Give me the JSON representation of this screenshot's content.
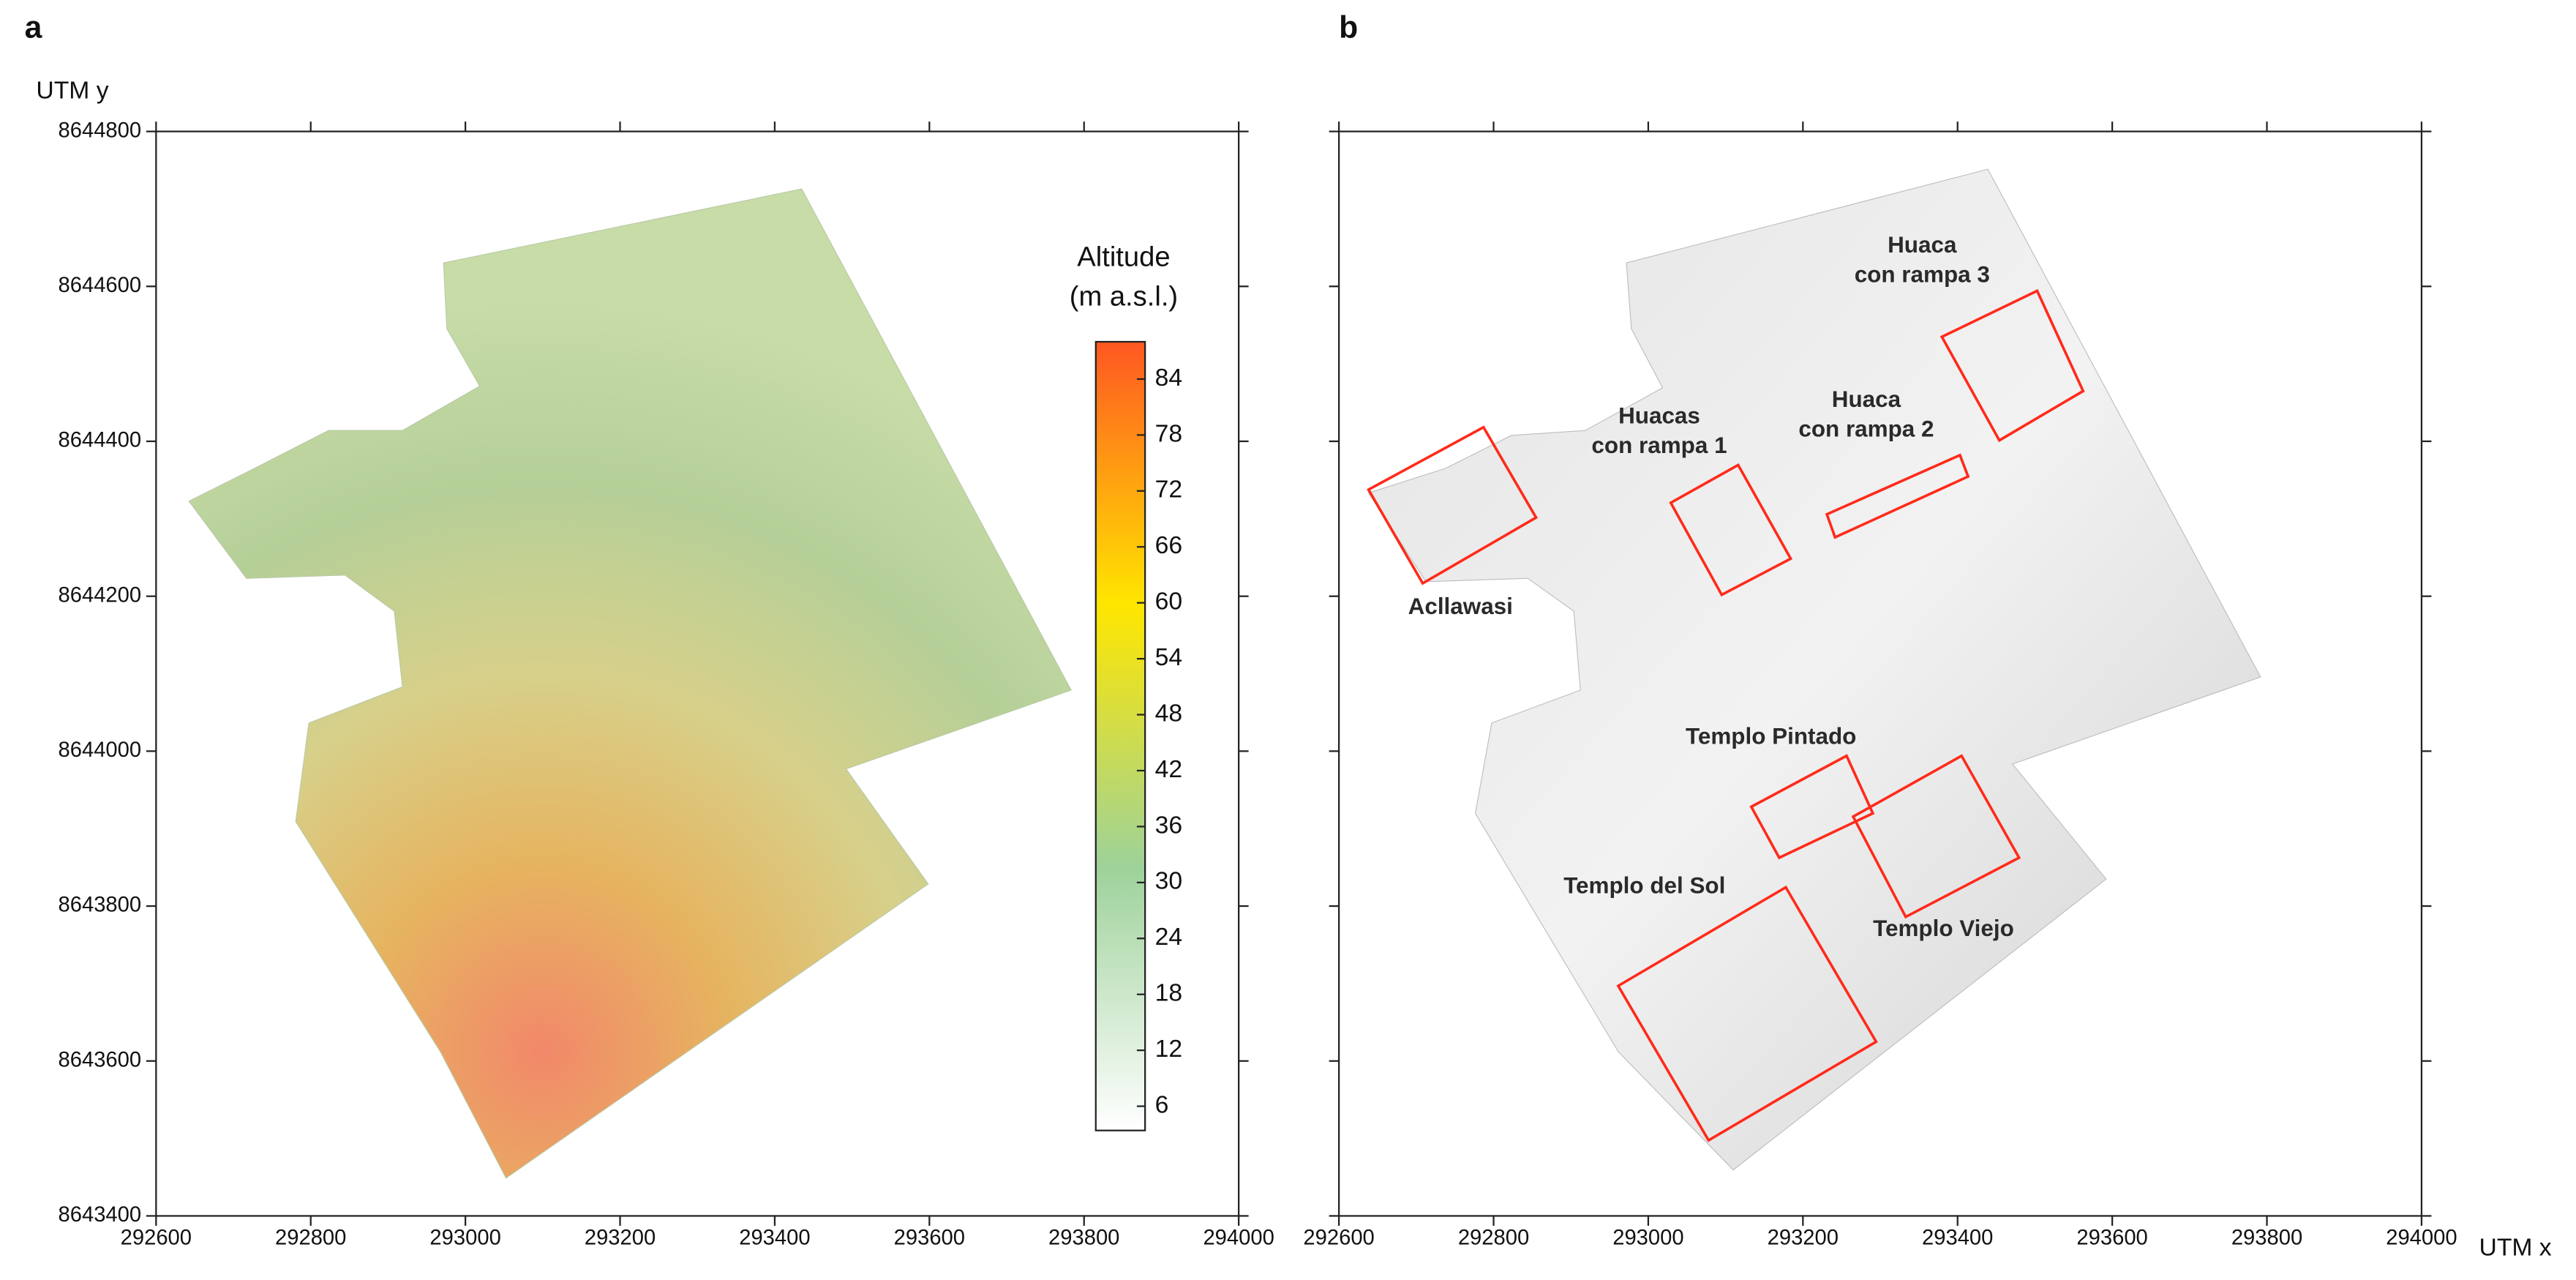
{
  "chart_data": [
    {
      "type": "map",
      "panel": "a",
      "xlim": [
        292600,
        294000
      ],
      "ylim": [
        8643400,
        8644800
      ],
      "xticks": [
        292600,
        292800,
        293000,
        293200,
        293400,
        293600,
        293800,
        294000
      ],
      "yticks": [
        8643400,
        8643600,
        8643800,
        8644000,
        8644200,
        8644400,
        8644600,
        8644800
      ],
      "ylabel": "UTM y",
      "colorbar": {
        "title": [
          "Altitude",
          "(m a.s.l.)"
        ],
        "clim": [
          3.4,
          88
        ],
        "colors": [
          "#ffffff",
          "#9ed29a",
          "#ffe600",
          "#ff5722"
        ],
        "ticks": [
          6,
          12,
          18,
          24,
          30,
          36,
          42,
          48,
          54,
          60,
          66,
          72,
          78,
          84
        ]
      }
    },
    {
      "type": "map",
      "panel": "b",
      "xlim": [
        292600,
        294000
      ],
      "ylim": [
        8643400,
        8644800
      ],
      "xticks": [
        292600,
        292800,
        293000,
        293200,
        293400,
        293600,
        293800,
        294000
      ],
      "xlabel": "UTM x",
      "annotations": [
        {
          "lines": [
            "Acllawasi"
          ]
        },
        {
          "lines": [
            "Huacas",
            "con rampa 1"
          ]
        },
        {
          "lines": [
            "Huaca",
            "con rampa 2"
          ]
        },
        {
          "lines": [
            "Huaca",
            "con rampa 3"
          ]
        },
        {
          "lines": [
            "Templo Pintado"
          ]
        },
        {
          "lines": [
            "Templo Viejo"
          ]
        },
        {
          "lines": [
            "Templo del Sol"
          ]
        }
      ],
      "box_color": "#ff2a1a"
    }
  ]
}
